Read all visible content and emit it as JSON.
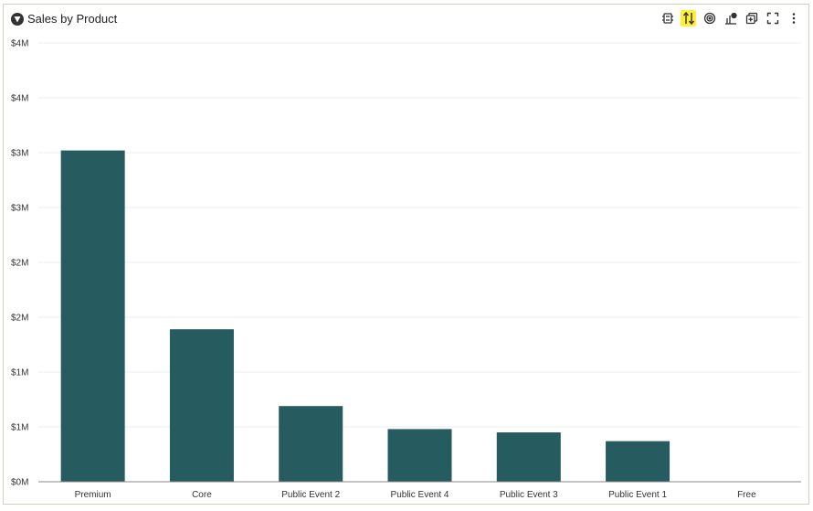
{
  "header": {
    "title": "Sales by Product",
    "toolbar": [
      {
        "name": "data-cube-icon",
        "active": false
      },
      {
        "name": "sort-icon",
        "active": true
      },
      {
        "name": "target-icon",
        "active": false
      },
      {
        "name": "chart-options-icon",
        "active": false
      },
      {
        "name": "copy-add-icon",
        "active": false
      },
      {
        "name": "fullscreen-icon",
        "active": false
      },
      {
        "name": "more-vertical-icon",
        "active": false
      }
    ]
  },
  "colors": {
    "bar": "#265b5f",
    "grid": "#eeeeee",
    "axis": "#888888",
    "highlight": "#ffef3a"
  },
  "chart_data": {
    "type": "bar",
    "title": "Sales by Product",
    "xlabel": "",
    "ylabel": "",
    "categories": [
      "Premium",
      "Core",
      "Public Event 2",
      "Public Event 4",
      "Public Event 3",
      "Public Event 1",
      "Free"
    ],
    "values": [
      3020000,
      1390000,
      690000,
      480000,
      450000,
      370000,
      0
    ],
    "ylim": [
      0,
      4000000
    ],
    "yticks": [
      0,
      500000,
      1000000,
      1500000,
      2000000,
      2500000,
      3000000,
      3500000,
      4000000
    ],
    "ytick_labels": [
      "$0M",
      "$1M",
      "$1M",
      "$2M",
      "$2M",
      "$3M",
      "$3M",
      "$4M",
      "$4M"
    ],
    "grid": true
  }
}
